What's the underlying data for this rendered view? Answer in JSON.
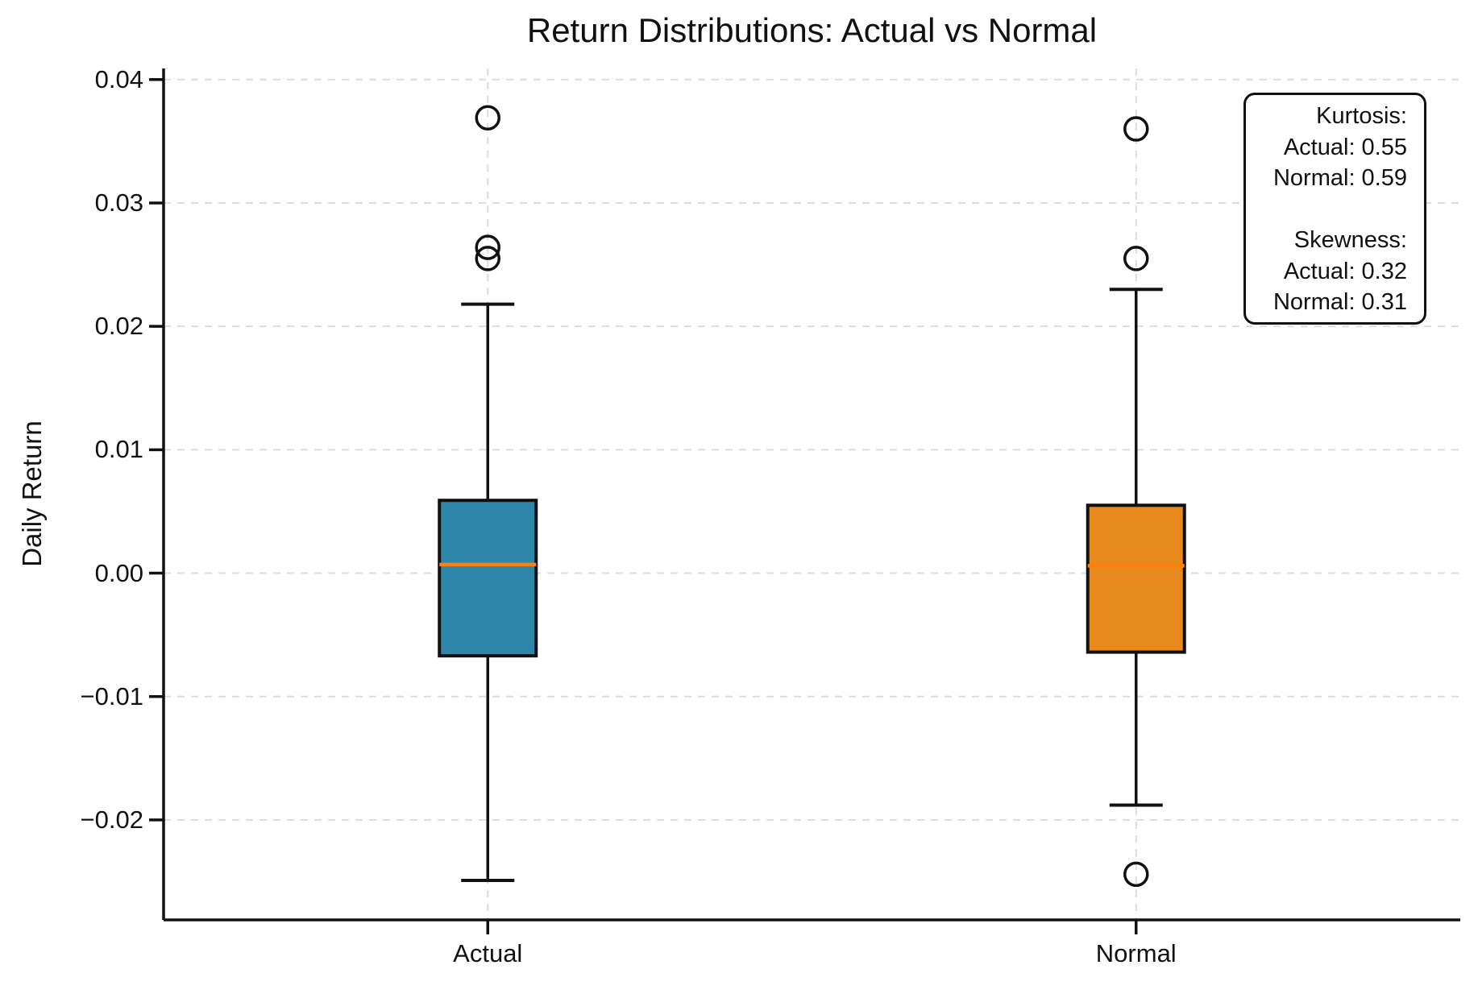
{
  "chart_data": {
    "type": "box",
    "title": "Return Distributions: Actual vs Normal",
    "ylabel": "Daily Return",
    "xlabel": "",
    "categories": [
      "Actual",
      "Normal"
    ],
    "ylim": [
      -0.0281,
      0.0409
    ],
    "yticks": [
      0.04,
      0.03,
      0.02,
      0.01,
      0.0,
      -0.01,
      -0.02
    ],
    "ytick_labels": [
      "0.04",
      "0.03",
      "0.02",
      "0.01",
      "0.00",
      "−0.01",
      "−0.02"
    ],
    "grid": {
      "visible": true,
      "dashed": true,
      "color": "#dcdcdc"
    },
    "legend": "none",
    "median_color": "#FF7F0E",
    "box_edge_color": "#111111",
    "series": [
      {
        "name": "Actual",
        "fill": "#2E86AB",
        "q1": -0.0067,
        "median": 0.0007,
        "q3": 0.0059,
        "whisker_low": -0.0249,
        "whisker_high": 0.0218,
        "outliers": [
          0.0369,
          0.0264,
          0.0255
        ]
      },
      {
        "name": "Normal",
        "fill": "#E8891E",
        "q1": -0.0064,
        "median": 0.0006,
        "q3": 0.0055,
        "whisker_low": -0.0188,
        "whisker_high": 0.023,
        "outliers": [
          0.036,
          0.0255,
          -0.0244
        ]
      }
    ]
  },
  "annotation": {
    "lines": [
      "Kurtosis:",
      "Actual: 0.55",
      "Normal: 0.59",
      "",
      "Skewness:",
      "Actual: 0.32",
      "Normal: 0.31"
    ]
  }
}
